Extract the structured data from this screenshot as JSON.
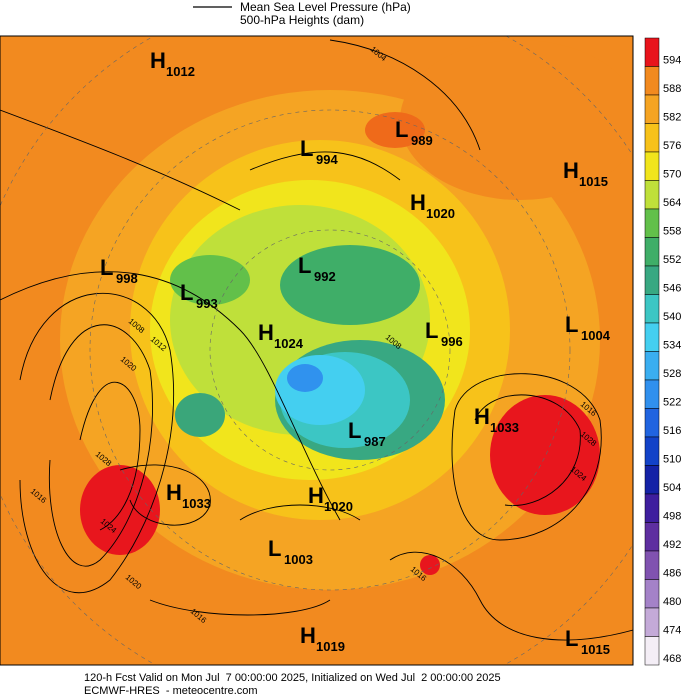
{
  "legend": {
    "line_1": "Mean Sea Level Pressure (hPa)",
    "line_2": "500-hPa Heights (dam)"
  },
  "colorbar": {
    "ticks": [
      "594",
      "588",
      "582",
      "576",
      "570",
      "564",
      "558",
      "552",
      "546",
      "540",
      "534",
      "528",
      "522",
      "516",
      "510",
      "504",
      "498",
      "492",
      "486",
      "480",
      "474",
      "468"
    ]
  },
  "centers": [
    {
      "kind": "H",
      "value": "1012"
    },
    {
      "kind": "L",
      "value": "994"
    },
    {
      "kind": "L",
      "value": "989"
    },
    {
      "kind": "H",
      "value": "1015"
    },
    {
      "kind": "H",
      "value": "1020"
    },
    {
      "kind": "L",
      "value": "998"
    },
    {
      "kind": "L",
      "value": "993"
    },
    {
      "kind": "L",
      "value": "992"
    },
    {
      "kind": "H",
      "value": "1024"
    },
    {
      "kind": "L",
      "value": "996"
    },
    {
      "kind": "L",
      "value": "1004"
    },
    {
      "kind": "H",
      "value": "1033"
    },
    {
      "kind": "L",
      "value": "987"
    },
    {
      "kind": "H",
      "value": "1033"
    },
    {
      "kind": "H",
      "value": "1020"
    },
    {
      "kind": "L",
      "value": "1003"
    },
    {
      "kind": "H",
      "value": "1019"
    },
    {
      "kind": "L",
      "value": "1015"
    }
  ],
  "isobar_labels": [
    "1004",
    "1008",
    "1008",
    "1012",
    "1016",
    "1016",
    "1020",
    "1024",
    "1028",
    "1016",
    "1024",
    "1028",
    "1016",
    "1020"
  ],
  "footer": {
    "line_1": "120-h Fcst Valid on Mon Jul  7 00:00:00 2025, Initialized on Wed Jul  2 00:00:00 2025",
    "line_2": "ECMWF-HRES  - meteocentre.com"
  }
}
